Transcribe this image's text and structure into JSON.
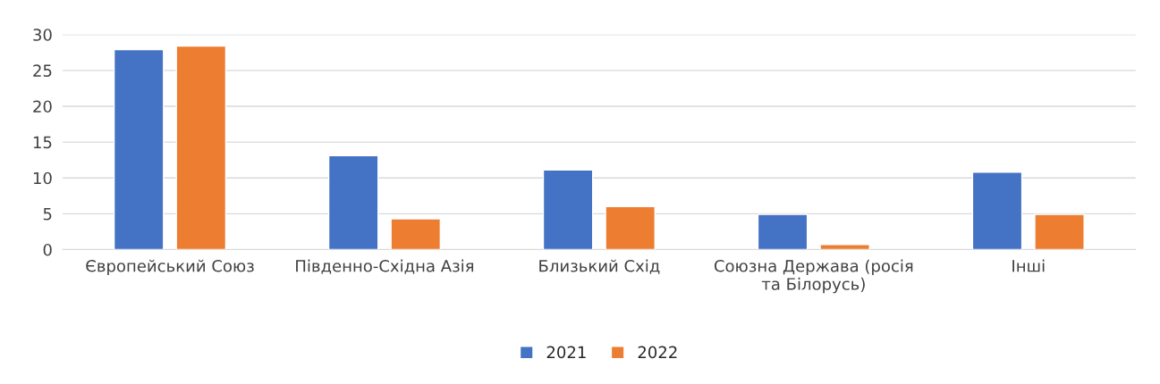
{
  "chart_data": {
    "type": "bar",
    "categories": [
      "Європейський Союз",
      "Південно-Східна Азія",
      "Близький Схід",
      "Союзна Держава (росія\nта Білорусь)",
      "Інші"
    ],
    "series": [
      {
        "name": "2021",
        "color": "#4472c4",
        "values": [
          27.9,
          13.1,
          11.1,
          4.9,
          10.8
        ]
      },
      {
        "name": "2022",
        "color": "#ed7d31",
        "values": [
          28.4,
          4.3,
          6.0,
          0.7,
          4.9
        ]
      }
    ],
    "ylim": [
      0,
      30
    ],
    "yticks": [
      0,
      5,
      10,
      15,
      20,
      25,
      30
    ],
    "grid": "y",
    "legend": "bottom"
  }
}
